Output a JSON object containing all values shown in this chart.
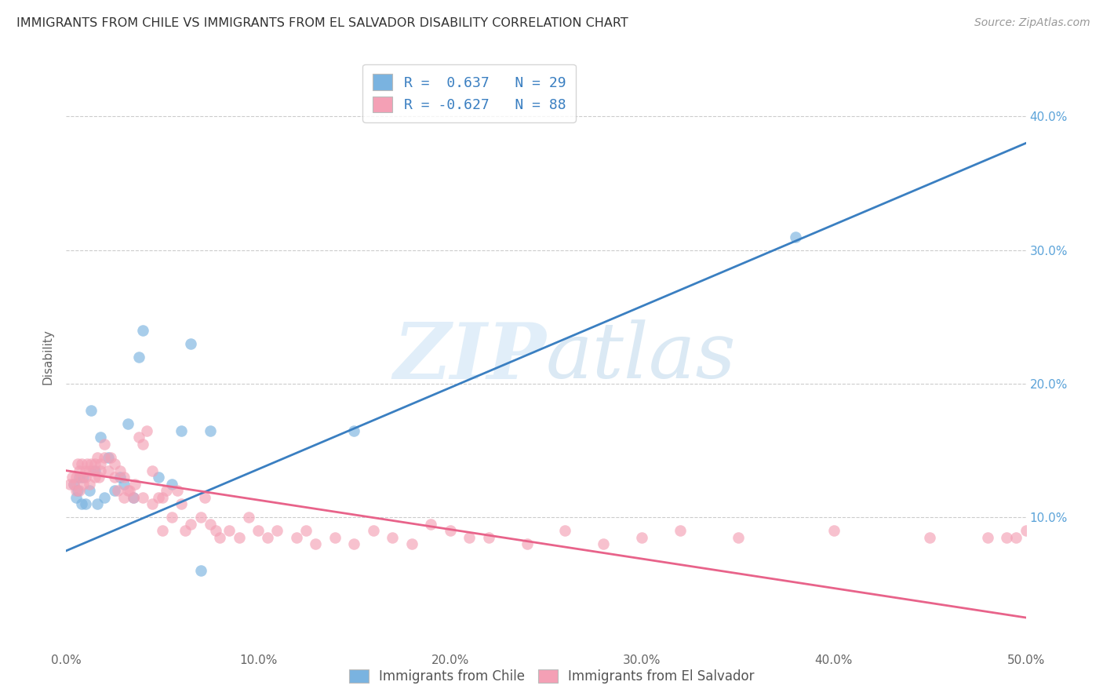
{
  "title": "IMMIGRANTS FROM CHILE VS IMMIGRANTS FROM EL SALVADOR DISABILITY CORRELATION CHART",
  "source": "Source: ZipAtlas.com",
  "ylabel": "Disability",
  "xlim": [
    0.0,
    0.5
  ],
  "ylim": [
    0.0,
    0.44
  ],
  "xticks": [
    0.0,
    0.1,
    0.2,
    0.3,
    0.4,
    0.5
  ],
  "yticks": [
    0.1,
    0.2,
    0.3,
    0.4
  ],
  "xtick_labels": [
    "0.0%",
    "10.0%",
    "20.0%",
    "30.0%",
    "40.0%",
    "50.0%"
  ],
  "ytick_labels": [
    "10.0%",
    "20.0%",
    "30.0%",
    "40.0%"
  ],
  "chile_color": "#7ab3e0",
  "el_salvador_color": "#f4a0b5",
  "chile_line_color": "#3a7fc1",
  "el_salvador_line_color": "#e8638a",
  "chile_R": 0.637,
  "chile_N": 29,
  "el_salvador_R": -0.627,
  "el_salvador_N": 88,
  "watermark_zip": "ZIP",
  "watermark_atlas": "atlas",
  "background_color": "#ffffff",
  "grid_color": "#cccccc",
  "chile_scatter_x": [
    0.004,
    0.005,
    0.006,
    0.007,
    0.008,
    0.009,
    0.01,
    0.012,
    0.013,
    0.015,
    0.016,
    0.018,
    0.02,
    0.022,
    0.025,
    0.028,
    0.03,
    0.032,
    0.035,
    0.038,
    0.04,
    0.048,
    0.055,
    0.06,
    0.065,
    0.07,
    0.075,
    0.15,
    0.38
  ],
  "chile_scatter_y": [
    0.125,
    0.115,
    0.12,
    0.13,
    0.11,
    0.13,
    0.11,
    0.12,
    0.18,
    0.135,
    0.11,
    0.16,
    0.115,
    0.145,
    0.12,
    0.13,
    0.125,
    0.17,
    0.115,
    0.22,
    0.24,
    0.13,
    0.125,
    0.165,
    0.23,
    0.06,
    0.165,
    0.165,
    0.31
  ],
  "el_salvador_scatter_x": [
    0.002,
    0.003,
    0.004,
    0.005,
    0.005,
    0.006,
    0.007,
    0.007,
    0.008,
    0.008,
    0.009,
    0.01,
    0.01,
    0.011,
    0.012,
    0.012,
    0.013,
    0.014,
    0.015,
    0.015,
    0.016,
    0.017,
    0.018,
    0.018,
    0.02,
    0.02,
    0.022,
    0.023,
    0.025,
    0.025,
    0.027,
    0.028,
    0.03,
    0.03,
    0.032,
    0.033,
    0.035,
    0.036,
    0.038,
    0.04,
    0.04,
    0.042,
    0.045,
    0.045,
    0.048,
    0.05,
    0.05,
    0.052,
    0.055,
    0.058,
    0.06,
    0.062,
    0.065,
    0.07,
    0.072,
    0.075,
    0.078,
    0.08,
    0.085,
    0.09,
    0.095,
    0.1,
    0.105,
    0.11,
    0.12,
    0.125,
    0.13,
    0.14,
    0.15,
    0.16,
    0.17,
    0.18,
    0.19,
    0.2,
    0.21,
    0.22,
    0.24,
    0.26,
    0.28,
    0.3,
    0.32,
    0.35,
    0.4,
    0.45,
    0.48,
    0.49,
    0.495,
    0.5
  ],
  "el_salvador_scatter_y": [
    0.125,
    0.13,
    0.125,
    0.13,
    0.12,
    0.14,
    0.135,
    0.12,
    0.13,
    0.14,
    0.125,
    0.135,
    0.13,
    0.14,
    0.135,
    0.125,
    0.14,
    0.135,
    0.14,
    0.13,
    0.145,
    0.13,
    0.14,
    0.135,
    0.145,
    0.155,
    0.135,
    0.145,
    0.14,
    0.13,
    0.12,
    0.135,
    0.13,
    0.115,
    0.12,
    0.12,
    0.115,
    0.125,
    0.16,
    0.155,
    0.115,
    0.165,
    0.135,
    0.11,
    0.115,
    0.115,
    0.09,
    0.12,
    0.1,
    0.12,
    0.11,
    0.09,
    0.095,
    0.1,
    0.115,
    0.095,
    0.09,
    0.085,
    0.09,
    0.085,
    0.1,
    0.09,
    0.085,
    0.09,
    0.085,
    0.09,
    0.08,
    0.085,
    0.08,
    0.09,
    0.085,
    0.08,
    0.095,
    0.09,
    0.085,
    0.085,
    0.08,
    0.09,
    0.08,
    0.085,
    0.09,
    0.085,
    0.09,
    0.085,
    0.085,
    0.085,
    0.085,
    0.09
  ],
  "chile_line_x": [
    0.0,
    0.5
  ],
  "chile_line_y_start": 0.075,
  "chile_line_y_end": 0.38,
  "el_salvador_line_x": [
    0.0,
    0.5
  ],
  "el_salvador_line_y_start": 0.135,
  "el_salvador_line_y_end": 0.025,
  "legend_label_1": "R =  0.637   N = 29",
  "legend_label_2": "R = -0.627   N = 88",
  "bottom_legend_1": "Immigrants from Chile",
  "bottom_legend_2": "Immigrants from El Salvador"
}
